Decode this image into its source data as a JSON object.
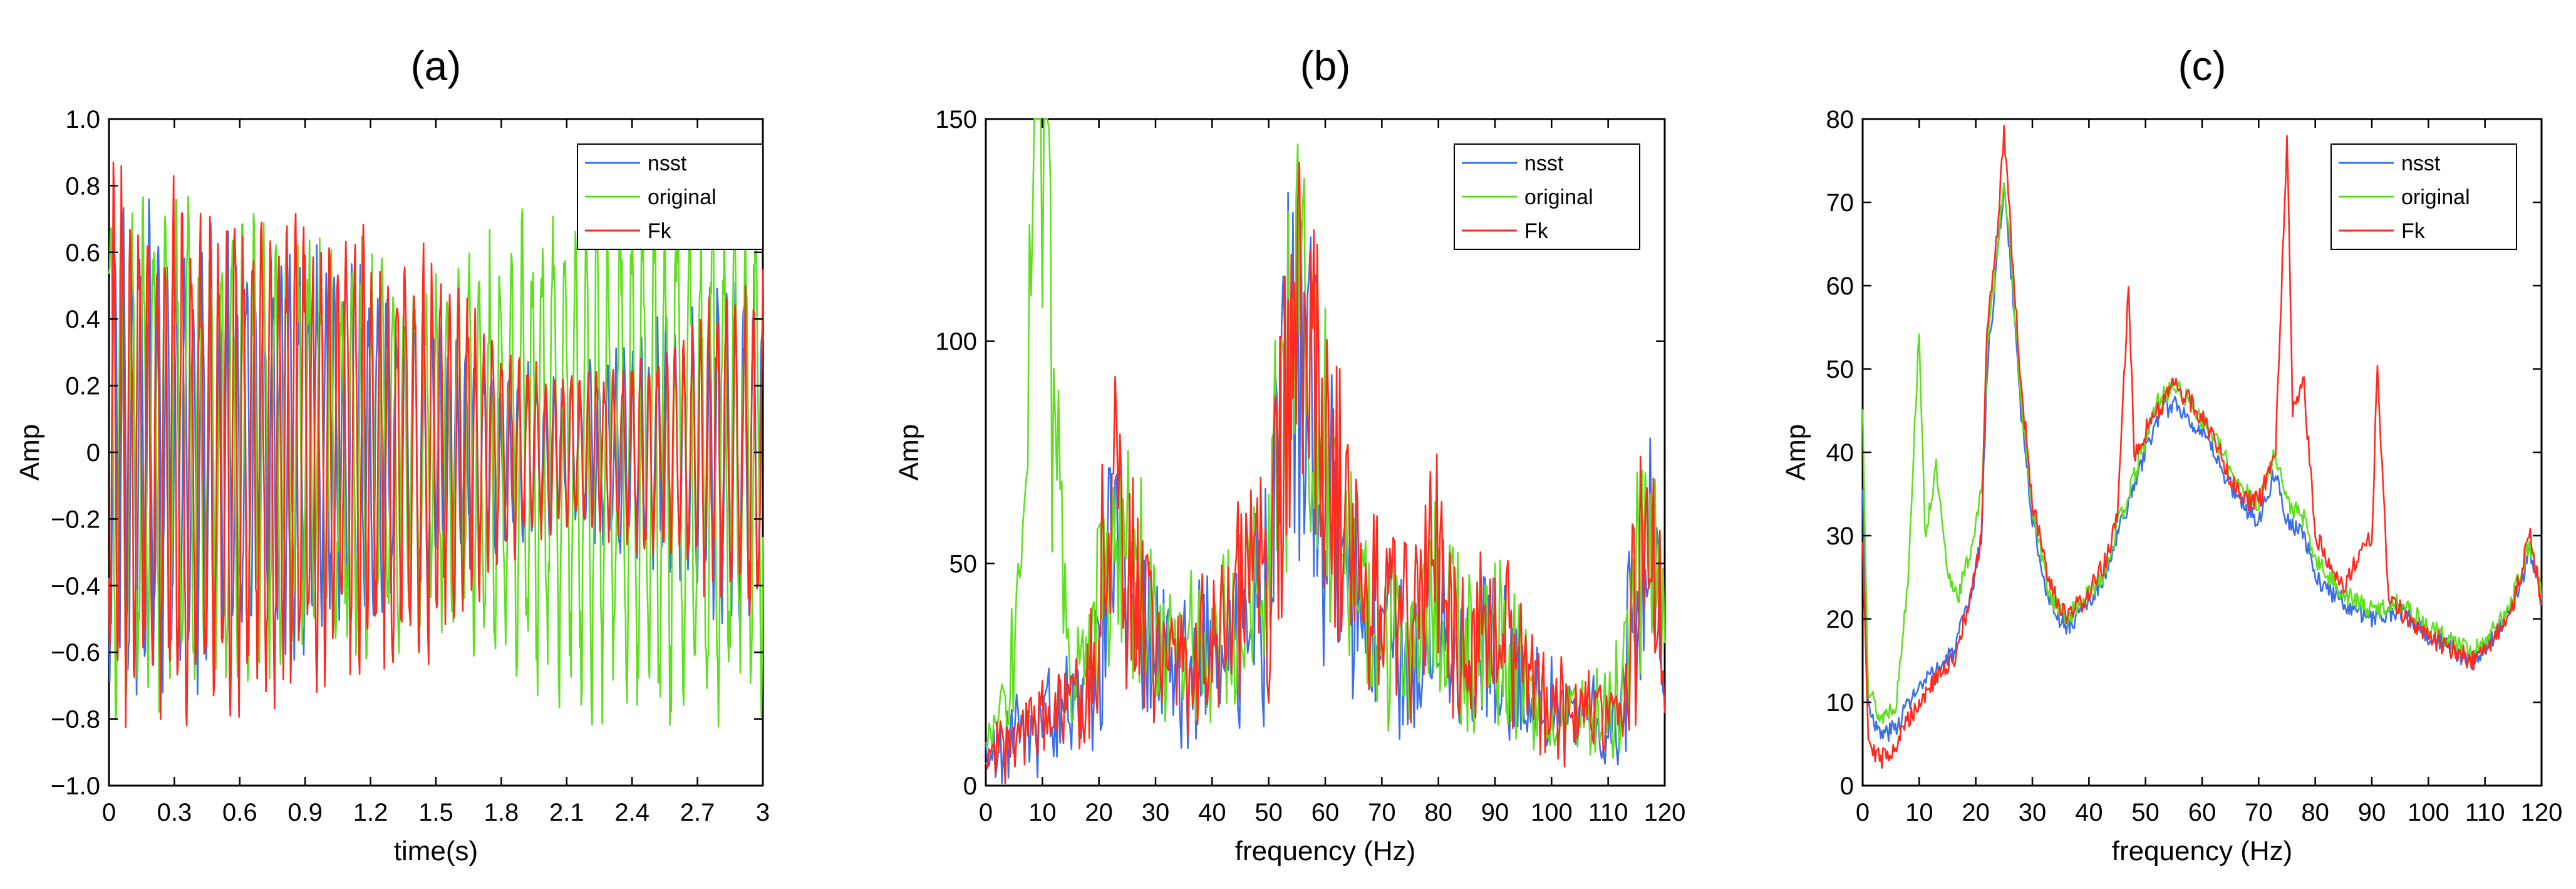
{
  "chart_data": [
    {
      "type": "line",
      "title": "(a)",
      "xlabel": "time(s)",
      "ylabel": "Amp",
      "xlim": [
        0,
        3
      ],
      "ylim": [
        -1,
        1
      ],
      "xticks": [
        0,
        0.3,
        0.6,
        0.9,
        1.2,
        1.5,
        1.8,
        2.1,
        2.4,
        2.7,
        3
      ],
      "xtick_labels": [
        "0",
        "0.3",
        "0.6",
        "0.9",
        "1.2",
        "1.5",
        "1.8",
        "2.1",
        "2.4",
        "2.7",
        "3"
      ],
      "yticks": [
        -1,
        -0.8,
        -0.6,
        -0.4,
        -0.2,
        0,
        0.2,
        0.4,
        0.6,
        0.8,
        1
      ],
      "ytick_labels": [
        "−1.0",
        "−0.8",
        "−0.6",
        "−0.4",
        "−0.2",
        "0",
        "0.2",
        "0.4",
        "0.6",
        "0.8",
        "1.0"
      ],
      "legend_position": "top-right",
      "series": [
        {
          "name": "nsst",
          "color": "#3b6fe8",
          "pattern": "oscillating",
          "envelope": [
            0.8,
            0.75,
            0.7,
            0.65,
            0.55,
            0.45,
            0.3,
            0.25,
            0.35,
            0.5,
            0.6
          ],
          "period": 0.04,
          "seed": 11
        },
        {
          "name": "original",
          "color": "#5fe01f",
          "pattern": "oscillating",
          "envelope": [
            0.85,
            0.8,
            0.75,
            0.7,
            0.65,
            0.55,
            0.7,
            0.85,
            0.9,
            0.9,
            0.8
          ],
          "period": 0.05,
          "seed": 23
        },
        {
          "name": "Fk",
          "color": "#ff2a1f",
          "pattern": "oscillating",
          "envelope": [
            0.92,
            0.85,
            0.8,
            0.78,
            0.7,
            0.65,
            0.35,
            0.25,
            0.3,
            0.45,
            0.6
          ],
          "period": 0.04,
          "seed": 37
        }
      ]
    },
    {
      "type": "line",
      "title": "(b)",
      "xlabel": "frequency (Hz)",
      "ylabel": "Amp",
      "xlim": [
        0,
        120
      ],
      "ylim": [
        0,
        150
      ],
      "xticks": [
        0,
        10,
        20,
        30,
        40,
        50,
        60,
        70,
        80,
        90,
        100,
        110,
        120
      ],
      "xtick_labels": [
        "0",
        "10",
        "20",
        "30",
        "40",
        "50",
        "60",
        "70",
        "80",
        "90",
        "100",
        "110",
        "120"
      ],
      "yticks": [
        0,
        50,
        100,
        150
      ],
      "ytick_labels": [
        "0",
        "50",
        "100",
        "150"
      ],
      "legend_position": "top-right",
      "series": [
        {
          "name": "nsst",
          "color": "#3b6fe8",
          "pattern": "spectrum-noisy",
          "anchors": [
            [
              0,
              5
            ],
            [
              5,
              12
            ],
            [
              10,
              15
            ],
            [
              15,
              18
            ],
            [
              20,
              30
            ],
            [
              23,
              60
            ],
            [
              27,
              40
            ],
            [
              30,
              30
            ],
            [
              35,
              25
            ],
            [
              40,
              30
            ],
            [
              45,
              35
            ],
            [
              50,
              45
            ],
            [
              53,
              85
            ],
            [
              56,
              95
            ],
            [
              60,
              70
            ],
            [
              65,
              40
            ],
            [
              70,
              30
            ],
            [
              75,
              30
            ],
            [
              80,
              40
            ],
            [
              85,
              25
            ],
            [
              90,
              35
            ],
            [
              95,
              20
            ],
            [
              100,
              15
            ],
            [
              105,
              15
            ],
            [
              110,
              15
            ],
            [
              113,
              25
            ],
            [
              117,
              55
            ],
            [
              120,
              35
            ]
          ],
          "noise": 14,
          "seed": 5
        },
        {
          "name": "original",
          "color": "#5fe01f",
          "pattern": "spectrum-noisy",
          "anchors": [
            [
              0,
              8
            ],
            [
              4,
              20
            ],
            [
              7,
              60
            ],
            [
              9,
              130
            ],
            [
              10,
              150
            ],
            [
              11,
              120
            ],
            [
              13,
              60
            ],
            [
              15,
              28
            ],
            [
              18,
              25
            ],
            [
              20,
              40
            ],
            [
              23,
              65
            ],
            [
              27,
              45
            ],
            [
              30,
              30
            ],
            [
              35,
              28
            ],
            [
              40,
              32
            ],
            [
              45,
              38
            ],
            [
              50,
              48
            ],
            [
              53,
              88
            ],
            [
              56,
              95
            ],
            [
              60,
              72
            ],
            [
              65,
              42
            ],
            [
              70,
              32
            ],
            [
              75,
              32
            ],
            [
              80,
              42
            ],
            [
              85,
              27
            ],
            [
              90,
              37
            ],
            [
              95,
              22
            ],
            [
              100,
              17
            ],
            [
              105,
              17
            ],
            [
              110,
              17
            ],
            [
              113,
              27
            ],
            [
              117,
              58
            ],
            [
              120,
              38
            ]
          ],
          "noise": 10,
          "seed": 9
        },
        {
          "name": "Fk",
          "color": "#ff2a1f",
          "pattern": "spectrum-noisy",
          "anchors": [
            [
              0,
              8
            ],
            [
              5,
              12
            ],
            [
              10,
              15
            ],
            [
              15,
              20
            ],
            [
              20,
              32
            ],
            [
              22,
              70
            ],
            [
              25,
              50
            ],
            [
              30,
              32
            ],
            [
              35,
              28
            ],
            [
              40,
              32
            ],
            [
              45,
              38
            ],
            [
              50,
              48
            ],
            [
              53,
              85
            ],
            [
              56,
              95
            ],
            [
              60,
              72
            ],
            [
              65,
              45
            ],
            [
              70,
              35
            ],
            [
              75,
              35
            ],
            [
              80,
              45
            ],
            [
              85,
              28
            ],
            [
              90,
              40
            ],
            [
              95,
              22
            ],
            [
              100,
              18
            ],
            [
              105,
              18
            ],
            [
              110,
              18
            ],
            [
              113,
              28
            ],
            [
              117,
              55
            ],
            [
              120,
              38
            ]
          ],
          "noise": 14,
          "seed": 17
        }
      ]
    },
    {
      "type": "line",
      "title": "(c)",
      "xlabel": "frequency (Hz)",
      "ylabel": "Amp",
      "xlim": [
        0,
        120
      ],
      "ylim": [
        0,
        80
      ],
      "xticks": [
        0,
        10,
        20,
        30,
        40,
        50,
        60,
        70,
        80,
        90,
        100,
        110,
        120
      ],
      "xtick_labels": [
        "0",
        "10",
        "20",
        "30",
        "40",
        "50",
        "60",
        "70",
        "80",
        "90",
        "100",
        "110",
        "120"
      ],
      "yticks": [
        0,
        10,
        20,
        30,
        40,
        50,
        60,
        70,
        80
      ],
      "ytick_labels": [
        "0",
        "10",
        "20",
        "30",
        "40",
        "50",
        "60",
        "70",
        "80"
      ],
      "legend_position": "top-right",
      "series": [
        {
          "name": "nsst",
          "color": "#3b6fe8",
          "pattern": "spectrum-smooth",
          "anchors": [
            [
              0,
              35
            ],
            [
              1,
              10
            ],
            [
              3,
              6
            ],
            [
              6,
              7
            ],
            [
              8,
              10
            ],
            [
              12,
              13
            ],
            [
              16,
              16
            ],
            [
              19,
              22
            ],
            [
              21,
              30
            ],
            [
              22,
              50
            ],
            [
              24,
              65
            ],
            [
              25,
              72
            ],
            [
              27,
              55
            ],
            [
              28,
              45
            ],
            [
              30,
              32
            ],
            [
              33,
              22
            ],
            [
              36,
              19
            ],
            [
              40,
              22
            ],
            [
              43,
              25
            ],
            [
              45,
              30
            ],
            [
              48,
              36
            ],
            [
              52,
              44
            ],
            [
              55,
              46
            ],
            [
              58,
              44
            ],
            [
              62,
              40
            ],
            [
              65,
              36
            ],
            [
              68,
              33
            ],
            [
              70,
              32
            ],
            [
              73,
              38
            ],
            [
              75,
              32
            ],
            [
              78,
              30
            ],
            [
              80,
              25
            ],
            [
              85,
              22
            ],
            [
              90,
              20
            ],
            [
              95,
              21
            ],
            [
              100,
              18
            ],
            [
              105,
              16
            ],
            [
              108,
              15
            ],
            [
              112,
              18
            ],
            [
              115,
              22
            ],
            [
              118,
              28
            ],
            [
              120,
              22
            ]
          ],
          "noise": 1.2,
          "seed": 3
        },
        {
          "name": "original",
          "color": "#5fe01f",
          "pattern": "spectrum-smooth",
          "anchors": [
            [
              0,
              45
            ],
            [
              1,
              12
            ],
            [
              3,
              8
            ],
            [
              6,
              10
            ],
            [
              8,
              25
            ],
            [
              10,
              55
            ],
            [
              11,
              30
            ],
            [
              13,
              38
            ],
            [
              15,
              25
            ],
            [
              17,
              23
            ],
            [
              19,
              28
            ],
            [
              21,
              35
            ],
            [
              22,
              52
            ],
            [
              24,
              66
            ],
            [
              25,
              73
            ],
            [
              27,
              56
            ],
            [
              28,
              46
            ],
            [
              30,
              33
            ],
            [
              33,
              23
            ],
            [
              36,
              20
            ],
            [
              40,
              23
            ],
            [
              43,
              26
            ],
            [
              45,
              31
            ],
            [
              48,
              37
            ],
            [
              52,
              46
            ],
            [
              55,
              48
            ],
            [
              58,
              46
            ],
            [
              62,
              42
            ],
            [
              65,
              38
            ],
            [
              68,
              35
            ],
            [
              70,
              34
            ],
            [
              73,
              40
            ],
            [
              75,
              34
            ],
            [
              78,
              32
            ],
            [
              80,
              27
            ],
            [
              85,
              23
            ],
            [
              90,
              21
            ],
            [
              95,
              22
            ],
            [
              100,
              19
            ],
            [
              105,
              17
            ],
            [
              108,
              16
            ],
            [
              112,
              19
            ],
            [
              115,
              23
            ],
            [
              118,
              29
            ],
            [
              120,
              23
            ]
          ],
          "noise": 1.2,
          "seed": 13
        },
        {
          "name": "Fk",
          "color": "#ff2a1f",
          "pattern": "spectrum-smooth",
          "anchors": [
            [
              0,
              30
            ],
            [
              1,
              6
            ],
            [
              3,
              3
            ],
            [
              6,
              5
            ],
            [
              8,
              8
            ],
            [
              12,
              12
            ],
            [
              16,
              15
            ],
            [
              19,
              22
            ],
            [
              21,
              30
            ],
            [
              22,
              55
            ],
            [
              24,
              68
            ],
            [
              25,
              79
            ],
            [
              27,
              58
            ],
            [
              28,
              48
            ],
            [
              30,
              34
            ],
            [
              33,
              24
            ],
            [
              36,
              20
            ],
            [
              40,
              23
            ],
            [
              43,
              27
            ],
            [
              45,
              32
            ],
            [
              47,
              60
            ],
            [
              48,
              40
            ],
            [
              52,
              45
            ],
            [
              55,
              48
            ],
            [
              58,
              46
            ],
            [
              62,
              42
            ],
            [
              65,
              37
            ],
            [
              68,
              34
            ],
            [
              70,
              34
            ],
            [
              73,
              40
            ],
            [
              75,
              78
            ],
            [
              76,
              45
            ],
            [
              78,
              48
            ],
            [
              80,
              30
            ],
            [
              85,
              24
            ],
            [
              90,
              30
            ],
            [
              91,
              50
            ],
            [
              93,
              22
            ],
            [
              95,
              21
            ],
            [
              100,
              18
            ],
            [
              105,
              16
            ],
            [
              108,
              15
            ],
            [
              112,
              18
            ],
            [
              115,
              22
            ],
            [
              118,
              30
            ],
            [
              120,
              22
            ]
          ],
          "noise": 1.3,
          "seed": 29
        }
      ]
    }
  ]
}
